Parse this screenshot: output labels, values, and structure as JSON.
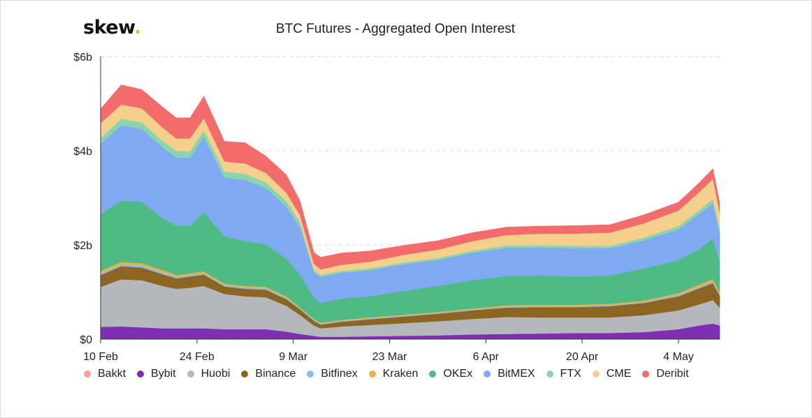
{
  "logo": {
    "text": "skew",
    "dot": "."
  },
  "chart_data": {
    "type": "area",
    "stacked": true,
    "title": "BTC Futures - Aggregated Open Interest",
    "xlabel": "",
    "ylabel": "",
    "ylim": [
      0,
      6
    ],
    "yticks": [
      {
        "value": 0,
        "label": "$0"
      },
      {
        "value": 2,
        "label": "$2b"
      },
      {
        "value": 4,
        "label": "$4b"
      },
      {
        "value": 6,
        "label": "$6b"
      }
    ],
    "xticks": [
      {
        "value": "2020-02-10",
        "label": "10 Feb"
      },
      {
        "value": "2020-02-24",
        "label": "24 Feb"
      },
      {
        "value": "2020-03-09",
        "label": "9 Mar"
      },
      {
        "value": "2020-03-23",
        "label": "23 Mar"
      },
      {
        "value": "2020-04-06",
        "label": "6 Apr"
      },
      {
        "value": "2020-04-20",
        "label": "20 Apr"
      },
      {
        "value": "2020-05-04",
        "label": "4 May"
      }
    ],
    "grid": "horizontal-dashed",
    "legend_position": "bottom",
    "x": [
      "2020-02-10",
      "2020-02-13",
      "2020-02-16",
      "2020-02-19",
      "2020-02-21",
      "2020-02-23",
      "2020-02-25",
      "2020-02-28",
      "2020-03-02",
      "2020-03-05",
      "2020-03-08",
      "2020-03-10",
      "2020-03-12",
      "2020-03-13",
      "2020-03-16",
      "2020-03-20",
      "2020-03-25",
      "2020-03-30",
      "2020-04-04",
      "2020-04-09",
      "2020-04-14",
      "2020-04-19",
      "2020-04-24",
      "2020-04-29",
      "2020-05-04",
      "2020-05-07",
      "2020-05-09",
      "2020-05-10"
    ],
    "series": [
      {
        "name": "Bakkt",
        "color": "#f4a09a",
        "values": [
          0.01,
          0.01,
          0.01,
          0.01,
          0.01,
          0.01,
          0.01,
          0.01,
          0.01,
          0.01,
          0.01,
          0.01,
          0.01,
          0.01,
          0.01,
          0.01,
          0.01,
          0.01,
          0.01,
          0.01,
          0.01,
          0.01,
          0.01,
          0.01,
          0.01,
          0.01,
          0.01,
          0.01
        ]
      },
      {
        "name": "Bybit",
        "color": "#7f2fb3",
        "values": [
          0.25,
          0.26,
          0.24,
          0.22,
          0.22,
          0.22,
          0.22,
          0.2,
          0.2,
          0.2,
          0.15,
          0.1,
          0.06,
          0.04,
          0.04,
          0.05,
          0.06,
          0.07,
          0.09,
          0.1,
          0.11,
          0.12,
          0.12,
          0.14,
          0.2,
          0.28,
          0.32,
          0.28
        ]
      },
      {
        "name": "Huobi",
        "color": "#b4b8bc",
        "values": [
          0.85,
          1.0,
          1.0,
          0.9,
          0.84,
          0.86,
          0.9,
          0.75,
          0.7,
          0.68,
          0.55,
          0.4,
          0.22,
          0.18,
          0.22,
          0.24,
          0.27,
          0.3,
          0.33,
          0.36,
          0.34,
          0.33,
          0.33,
          0.36,
          0.4,
          0.45,
          0.5,
          0.38
        ]
      },
      {
        "name": "Binance",
        "color": "#8c6521",
        "values": [
          0.25,
          0.28,
          0.27,
          0.25,
          0.22,
          0.24,
          0.24,
          0.16,
          0.16,
          0.16,
          0.14,
          0.12,
          0.1,
          0.08,
          0.1,
          0.12,
          0.14,
          0.16,
          0.18,
          0.2,
          0.22,
          0.22,
          0.24,
          0.26,
          0.3,
          0.34,
          0.36,
          0.25
        ]
      },
      {
        "name": "Bitfinex",
        "color": "#8ebbf3",
        "values": [
          0.04,
          0.04,
          0.04,
          0.04,
          0.03,
          0.03,
          0.03,
          0.03,
          0.03,
          0.03,
          0.03,
          0.02,
          0.02,
          0.02,
          0.02,
          0.02,
          0.02,
          0.02,
          0.02,
          0.02,
          0.02,
          0.02,
          0.02,
          0.02,
          0.03,
          0.03,
          0.03,
          0.03
        ]
      },
      {
        "name": "Kraken",
        "color": "#e8b33b",
        "values": [
          0.05,
          0.05,
          0.05,
          0.05,
          0.04,
          0.04,
          0.04,
          0.03,
          0.03,
          0.03,
          0.03,
          0.02,
          0.02,
          0.02,
          0.02,
          0.02,
          0.02,
          0.02,
          0.02,
          0.03,
          0.03,
          0.03,
          0.03,
          0.03,
          0.04,
          0.05,
          0.06,
          0.04
        ]
      },
      {
        "name": "OKEx",
        "color": "#4dbb83",
        "values": [
          1.2,
          1.3,
          1.3,
          1.1,
          1.05,
          1.0,
          1.25,
          1.0,
          0.95,
          0.9,
          0.8,
          0.7,
          0.45,
          0.42,
          0.45,
          0.45,
          0.5,
          0.55,
          0.6,
          0.62,
          0.62,
          0.6,
          0.6,
          0.68,
          0.7,
          0.75,
          0.85,
          0.65
        ]
      },
      {
        "name": "BitMEX",
        "color": "#7fa9f1",
        "values": [
          1.5,
          1.6,
          1.55,
          1.5,
          1.45,
          1.45,
          1.6,
          1.25,
          1.3,
          1.2,
          1.1,
          1.0,
          0.55,
          0.55,
          0.55,
          0.55,
          0.57,
          0.55,
          0.58,
          0.6,
          0.6,
          0.6,
          0.58,
          0.6,
          0.65,
          0.75,
          0.75,
          0.62
        ]
      },
      {
        "name": "FTX",
        "color": "#89d6ad",
        "values": [
          0.12,
          0.14,
          0.14,
          0.14,
          0.14,
          0.14,
          0.14,
          0.13,
          0.13,
          0.12,
          0.12,
          0.11,
          0.04,
          0.04,
          0.04,
          0.04,
          0.04,
          0.04,
          0.05,
          0.05,
          0.05,
          0.05,
          0.05,
          0.06,
          0.07,
          0.08,
          0.1,
          0.08
        ]
      },
      {
        "name": "CME",
        "color": "#f5cf8c",
        "values": [
          0.32,
          0.3,
          0.3,
          0.28,
          0.26,
          0.27,
          0.26,
          0.21,
          0.22,
          0.2,
          0.18,
          0.15,
          0.13,
          0.12,
          0.13,
          0.14,
          0.16,
          0.18,
          0.2,
          0.22,
          0.24,
          0.26,
          0.28,
          0.3,
          0.33,
          0.38,
          0.42,
          0.35
        ]
      },
      {
        "name": "Deribit",
        "color": "#f36c6c",
        "values": [
          0.3,
          0.42,
          0.4,
          0.44,
          0.44,
          0.44,
          0.47,
          0.43,
          0.44,
          0.36,
          0.38,
          0.3,
          0.24,
          0.26,
          0.25,
          0.23,
          0.2,
          0.19,
          0.18,
          0.17,
          0.16,
          0.17,
          0.17,
          0.18,
          0.18,
          0.2,
          0.22,
          0.2
        ]
      }
    ]
  }
}
